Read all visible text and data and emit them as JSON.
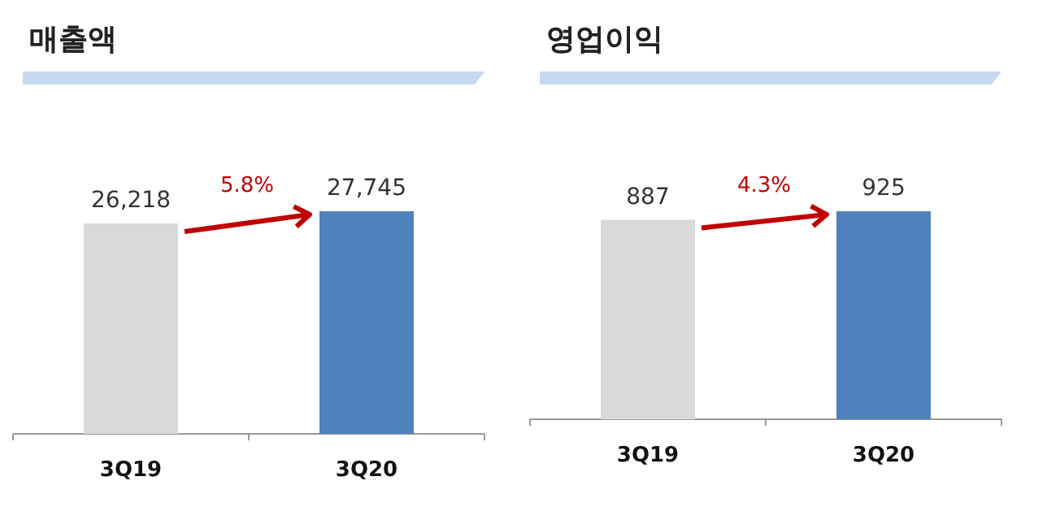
{
  "chart_data": [
    {
      "type": "bar",
      "title": "매출액",
      "categories": [
        "3Q19",
        "3Q20"
      ],
      "values": [
        26218,
        27745
      ],
      "colors": [
        "#d9d9d9",
        "#4f81bd"
      ],
      "data_labels": true,
      "value_labels": [
        "26,218",
        "27,745"
      ],
      "annotations": [
        "5.8%"
      ]
    },
    {
      "type": "bar",
      "title": "영업이익",
      "categories": [
        "3Q19",
        "3Q20"
      ],
      "values": [
        887,
        925
      ],
      "colors": [
        "#d9d9d9",
        "#4f81bd"
      ],
      "data_labels": true,
      "value_labels": [
        "887",
        "925"
      ],
      "annotations": [
        "4.3%"
      ]
    }
  ]
}
